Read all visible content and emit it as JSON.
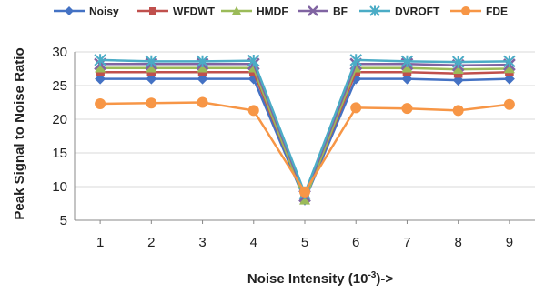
{
  "chart_data": {
    "type": "line",
    "title": "",
    "xlabel": "Noise Intensity (10",
    "xlabel_sup": "-3",
    "xlabel_suffix": ")->",
    "ylabel": "Peak Signal to Noise Ratio",
    "x": [
      1,
      2,
      3,
      4,
      5,
      6,
      7,
      8,
      9
    ],
    "xlim": [
      0.5,
      9.5
    ],
    "ylim": [
      5,
      30
    ],
    "yticks": [
      5,
      10,
      15,
      20,
      25,
      30
    ],
    "grid": true,
    "legend_position": "top",
    "series": [
      {
        "name": "Noisy",
        "color": "#4472C4",
        "marker": "diamond",
        "values": [
          26.0,
          26.0,
          26.0,
          26.0,
          8.0,
          26.0,
          26.0,
          25.8,
          26.0
        ]
      },
      {
        "name": "WFDWT",
        "color": "#C0504D",
        "marker": "square",
        "values": [
          27.0,
          27.0,
          27.0,
          27.0,
          8.2,
          27.0,
          27.0,
          26.8,
          27.0
        ]
      },
      {
        "name": "HMDF",
        "color": "#9BBB59",
        "marker": "triangle",
        "values": [
          27.6,
          27.6,
          27.6,
          27.6,
          8.0,
          27.6,
          27.6,
          27.4,
          27.5
        ]
      },
      {
        "name": "BF",
        "color": "#8064A2",
        "marker": "x",
        "values": [
          28.2,
          28.2,
          28.2,
          28.2,
          8.6,
          28.2,
          28.2,
          28.0,
          28.1
        ]
      },
      {
        "name": "DVROFT",
        "color": "#4BACC6",
        "marker": "star",
        "values": [
          28.8,
          28.6,
          28.6,
          28.7,
          9.0,
          28.8,
          28.6,
          28.5,
          28.6
        ]
      },
      {
        "name": "FDE",
        "color": "#F79646",
        "marker": "circle",
        "values": [
          22.3,
          22.4,
          22.5,
          21.3,
          9.2,
          21.7,
          21.6,
          21.3,
          22.2
        ]
      }
    ]
  }
}
